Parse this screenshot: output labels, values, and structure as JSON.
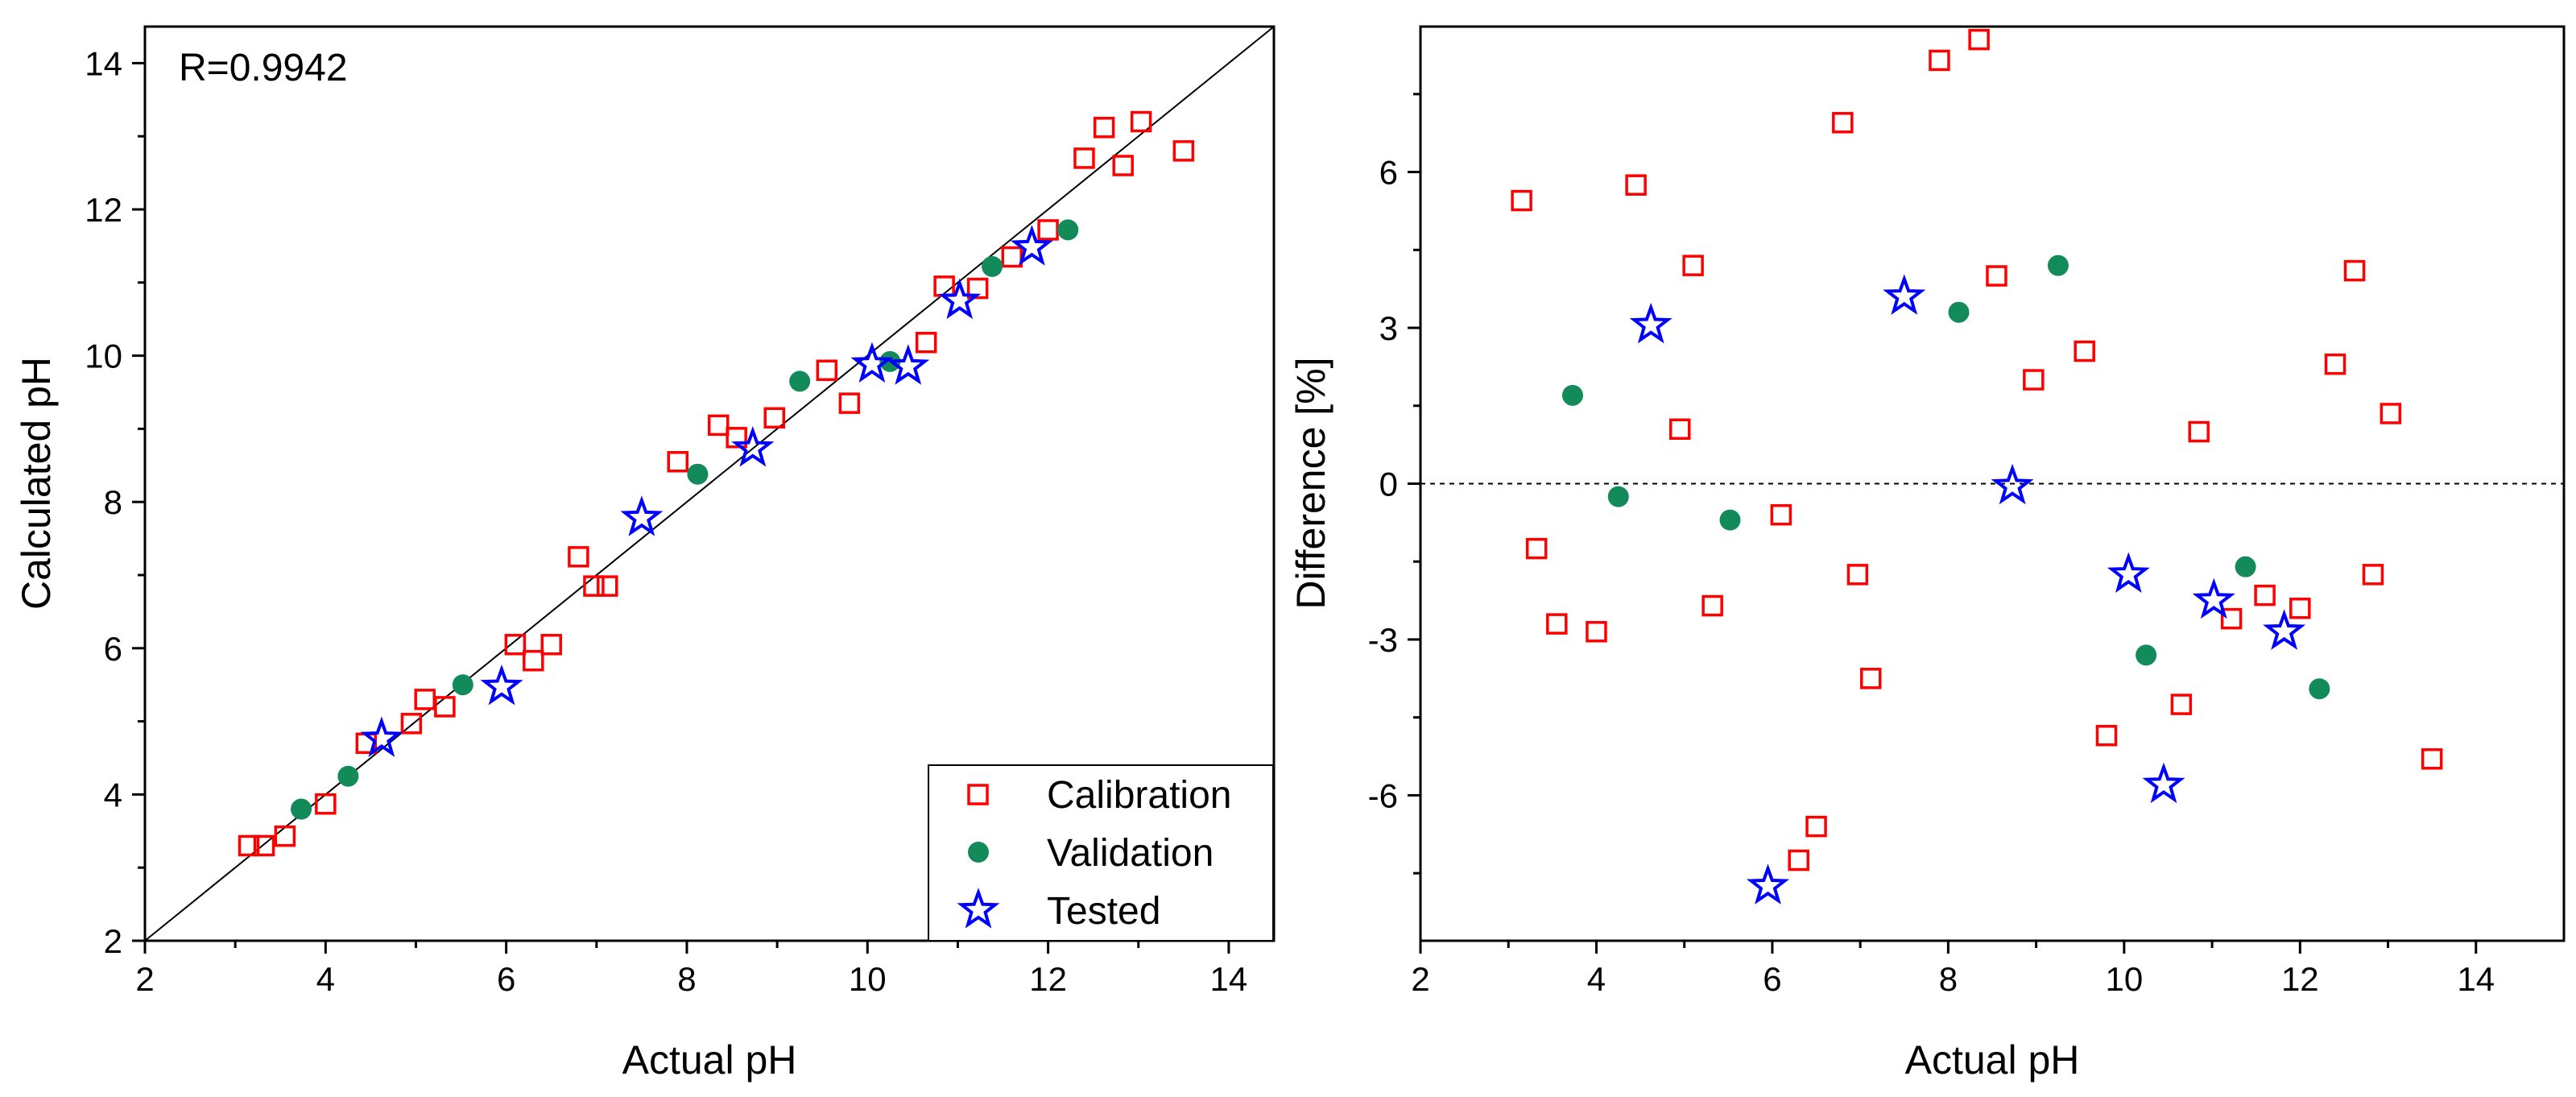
{
  "colors": {
    "calibration": "#ff0000",
    "validation": "#128a5a",
    "tested": "#0000ff",
    "axis": "#000000"
  },
  "legend": [
    {
      "key": "calibration",
      "label": "Calibration",
      "marker": "square-open"
    },
    {
      "key": "validation",
      "label": "Validation",
      "marker": "circle-filled"
    },
    {
      "key": "tested",
      "label": "Tested",
      "marker": "star-open"
    }
  ],
  "chart_data": [
    {
      "type": "scatter",
      "id": "left",
      "xlabel": "Actual pH",
      "ylabel": "Calculated pH",
      "xlim": [
        2,
        14.5
      ],
      "ylim": [
        2,
        14.5
      ],
      "xticks": [
        "2",
        "4",
        "6",
        "8",
        "10",
        "12",
        "14"
      ],
      "yticks": [
        "2",
        "4",
        "6",
        "8",
        "10",
        "12",
        "14"
      ],
      "annotation": "R=0.9942",
      "identity_line": true,
      "legend_position": "bottom-right",
      "series": [
        {
          "name": "Calibration",
          "key": "calibration",
          "points": [
            [
              3.15,
              3.3
            ],
            [
              3.32,
              3.3
            ],
            [
              3.55,
              3.43
            ],
            [
              4.0,
              3.87
            ],
            [
              4.45,
              4.7
            ],
            [
              4.95,
              4.97
            ],
            [
              5.1,
              5.3
            ],
            [
              5.32,
              5.2
            ],
            [
              6.1,
              6.05
            ],
            [
              6.3,
              5.83
            ],
            [
              6.5,
              6.05
            ],
            [
              6.8,
              7.25
            ],
            [
              6.97,
              6.85
            ],
            [
              7.12,
              6.85
            ],
            [
              7.9,
              8.55
            ],
            [
              8.35,
              9.05
            ],
            [
              8.55,
              8.88
            ],
            [
              8.97,
              9.15
            ],
            [
              9.55,
              9.8
            ],
            [
              9.8,
              9.35
            ],
            [
              10.65,
              10.18
            ],
            [
              10.85,
              10.95
            ],
            [
              11.22,
              10.92
            ],
            [
              11.6,
              11.35
            ],
            [
              12.0,
              11.72
            ],
            [
              12.4,
              12.7
            ],
            [
              12.62,
              13.12
            ],
            [
              12.83,
              12.6
            ],
            [
              13.03,
              13.2
            ],
            [
              13.5,
              12.8
            ]
          ]
        },
        {
          "name": "Validation",
          "key": "validation",
          "points": [
            [
              3.73,
              3.8
            ],
            [
              4.25,
              4.25
            ],
            [
              5.52,
              5.5
            ],
            [
              8.12,
              8.38
            ],
            [
              9.25,
              9.65
            ],
            [
              10.25,
              9.92
            ],
            [
              11.38,
              11.22
            ],
            [
              12.22,
              11.72
            ]
          ]
        },
        {
          "name": "Tested",
          "key": "tested",
          "points": [
            [
              4.62,
              4.76
            ],
            [
              5.95,
              5.47
            ],
            [
              7.5,
              7.78
            ],
            [
              8.73,
              8.73
            ],
            [
              10.05,
              9.88
            ],
            [
              10.45,
              9.85
            ],
            [
              11.02,
              10.75
            ],
            [
              11.82,
              11.48
            ]
          ]
        }
      ]
    },
    {
      "type": "scatter",
      "id": "right",
      "xlabel": "Actual pH",
      "ylabel": "Difference [%]",
      "xlim": [
        2,
        15
      ],
      "ylim": [
        -8.8,
        8.8
      ],
      "xticks": [
        "2",
        "4",
        "6",
        "8",
        "10",
        "12",
        "14"
      ],
      "yticks": [
        "-6",
        "-3",
        "0",
        "3",
        "6"
      ],
      "zero_line": true,
      "series": [
        {
          "name": "Calibration",
          "key": "calibration",
          "points": [
            [
              3.15,
              5.45
            ],
            [
              3.32,
              -1.25
            ],
            [
              3.55,
              -2.7
            ],
            [
              4.0,
              -2.85
            ],
            [
              4.45,
              5.75
            ],
            [
              4.95,
              1.05
            ],
            [
              5.1,
              4.2
            ],
            [
              5.32,
              -2.35
            ],
            [
              6.1,
              -0.6
            ],
            [
              6.3,
              -7.25
            ],
            [
              6.5,
              -6.6
            ],
            [
              6.8,
              6.95
            ],
            [
              6.97,
              -1.75
            ],
            [
              7.12,
              -3.75
            ],
            [
              7.9,
              8.15
            ],
            [
              8.35,
              8.55
            ],
            [
              8.55,
              4.0
            ],
            [
              8.97,
              2.0
            ],
            [
              9.55,
              2.55
            ],
            [
              9.8,
              -4.85
            ],
            [
              10.65,
              -4.25
            ],
            [
              10.85,
              1.0
            ],
            [
              11.22,
              -2.6
            ],
            [
              11.6,
              -2.15
            ],
            [
              12.0,
              -2.4
            ],
            [
              12.4,
              2.3
            ],
            [
              12.62,
              4.1
            ],
            [
              12.83,
              -1.75
            ],
            [
              13.03,
              1.35
            ],
            [
              13.5,
              -5.3
            ]
          ]
        },
        {
          "name": "Validation",
          "key": "validation",
          "points": [
            [
              3.73,
              1.7
            ],
            [
              4.25,
              -0.25
            ],
            [
              5.52,
              -0.7
            ],
            [
              8.12,
              3.3
            ],
            [
              9.25,
              4.2
            ],
            [
              10.25,
              -3.3
            ],
            [
              11.38,
              -1.6
            ],
            [
              12.22,
              -3.95
            ]
          ]
        },
        {
          "name": "Tested",
          "key": "tested",
          "points": [
            [
              4.62,
              3.05
            ],
            [
              5.95,
              -7.75
            ],
            [
              7.5,
              3.6
            ],
            [
              8.73,
              -0.05
            ],
            [
              10.05,
              -1.75
            ],
            [
              10.45,
              -5.8
            ],
            [
              11.02,
              -2.25
            ],
            [
              11.82,
              -2.85
            ]
          ]
        }
      ]
    }
  ]
}
